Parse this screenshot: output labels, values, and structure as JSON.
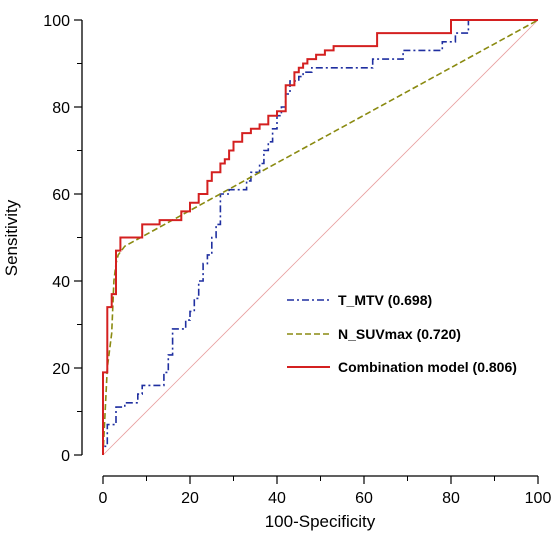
{
  "chart_data": {
    "type": "line",
    "xlabel": "100-Specificity",
    "ylabel": "Sensitivity",
    "xlim": [
      0,
      100
    ],
    "ylim": [
      0,
      100
    ],
    "x_ticks": [
      0,
      20,
      40,
      60,
      80,
      100
    ],
    "y_ticks": [
      0,
      20,
      40,
      60,
      80,
      100
    ],
    "x_ticks_text": [
      "0",
      "20",
      "40",
      "60",
      "80",
      "100"
    ],
    "y_ticks_text": [
      "0",
      "20",
      "40",
      "60",
      "80",
      "100"
    ],
    "grid": false,
    "legend_position": "bottom-right",
    "reference_line": {
      "x": [
        0,
        100
      ],
      "y": [
        0,
        100
      ],
      "color": "#e8a0a0"
    },
    "series": [
      {
        "name": "T_MTV (0.698)",
        "color": "#1f2fa0",
        "style": "dashdot",
        "x": [
          0,
          0,
          1,
          1,
          3,
          3,
          5,
          5,
          8,
          8,
          9,
          9,
          14,
          14,
          15,
          15,
          16,
          16,
          19,
          19,
          20,
          20,
          21,
          21,
          22,
          22,
          23,
          23,
          24,
          24,
          25,
          25,
          26,
          26,
          27,
          27,
          29,
          29,
          33,
          33,
          34,
          34,
          36,
          36,
          37,
          37,
          38,
          38,
          39,
          39,
          40,
          40,
          41,
          41,
          42,
          42,
          43,
          43,
          45,
          45,
          46,
          46,
          48,
          48,
          51,
          51,
          62,
          62,
          69,
          69,
          78,
          78,
          81,
          81,
          84,
          84,
          100
        ],
        "y": [
          0,
          2,
          2,
          7,
          7,
          11,
          11,
          12,
          12,
          14,
          14,
          16,
          16,
          19,
          19,
          23,
          23,
          29,
          29,
          31,
          31,
          33,
          33,
          36,
          36,
          40,
          40,
          44,
          44,
          46,
          46,
          50,
          50,
          53,
          53,
          60,
          60,
          61,
          61,
          63,
          63,
          65,
          65,
          67,
          67,
          70,
          70,
          72,
          72,
          75,
          75,
          78,
          78,
          80,
          80,
          83,
          83,
          86,
          86,
          87,
          87,
          88,
          88,
          89,
          89,
          89,
          89,
          91,
          91,
          93,
          93,
          95,
          95,
          97,
          97,
          100,
          100
        ]
      },
      {
        "name": "N_SUVmax (0.720)",
        "color": "#8a8a10",
        "style": "dashed",
        "x": [
          0,
          1,
          1.5,
          2,
          2.5,
          3,
          3.5,
          5,
          100
        ],
        "y": [
          0,
          20,
          24,
          28,
          40,
          44,
          46,
          48,
          100
        ]
      },
      {
        "name": "Combination model (0.806)",
        "color": "#d42020",
        "style": "solid",
        "x": [
          0,
          0,
          1,
          1,
          2,
          2,
          3,
          3,
          4,
          4,
          5,
          5,
          9,
          9,
          13,
          13,
          18,
          18,
          20,
          20,
          22,
          22,
          24,
          24,
          25,
          25,
          27,
          27,
          28,
          28,
          29,
          29,
          30,
          30,
          32,
          32,
          34,
          34,
          36,
          36,
          38,
          38,
          40,
          40,
          42,
          42,
          44,
          44,
          45,
          45,
          46,
          46,
          47,
          47,
          49,
          49,
          51,
          51,
          53,
          53,
          63,
          63,
          80,
          80,
          100
        ],
        "y": [
          0,
          19,
          19,
          34,
          34,
          37,
          37,
          47,
          47,
          50,
          50,
          50,
          50,
          53,
          53,
          54,
          54,
          56,
          56,
          58,
          58,
          60,
          60,
          63,
          63,
          65,
          65,
          67,
          67,
          68,
          68,
          70,
          70,
          72,
          72,
          74,
          74,
          75,
          75,
          76,
          76,
          78,
          78,
          79,
          79,
          85,
          85,
          88,
          88,
          89,
          89,
          90,
          90,
          91,
          91,
          92,
          92,
          93,
          93,
          94,
          94,
          97,
          97,
          100,
          100
        ]
      }
    ]
  }
}
